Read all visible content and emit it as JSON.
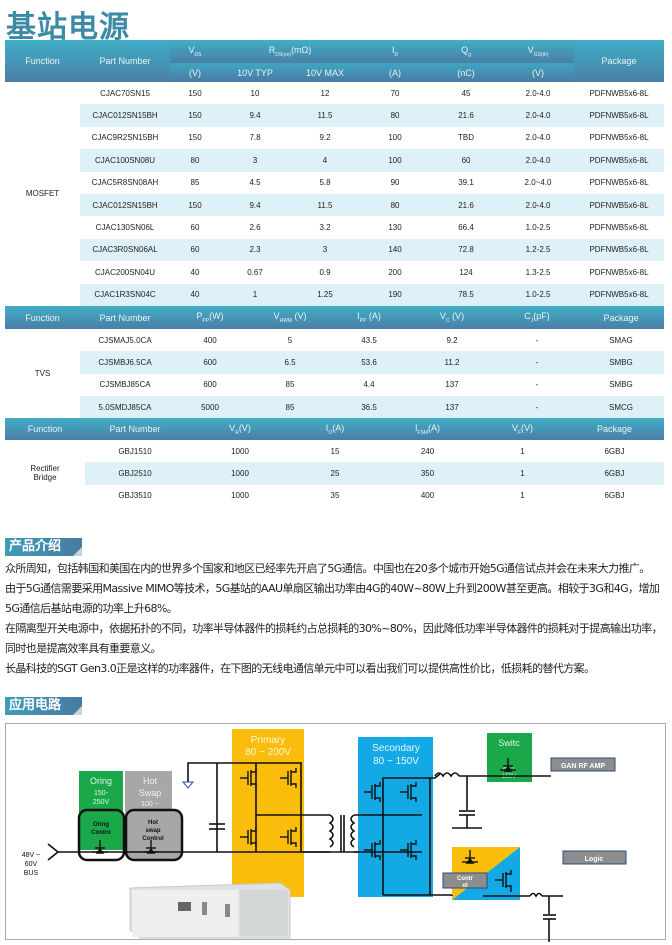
{
  "title": "基站电源",
  "mosfet": {
    "headers": {
      "function": "Function",
      "part": "Part  Number",
      "vds": "V",
      "vds_sub": "DS",
      "rds": "R",
      "rds_sub": "DS(on)",
      "rds_unit": "(mΩ)",
      "id": "I",
      "id_sub": "D",
      "qg": "Q",
      "qg_sub": "g",
      "vgs": "V",
      "vgs_sub": "GS(th)",
      "package": "Package",
      "units": {
        "vds": "(V)",
        "typ": "10V  TYP",
        "max": "10V  MAX",
        "id": "(A)",
        "qg": "(nC)",
        "vgs": "(V)"
      }
    },
    "function": "MOSFET",
    "rows": [
      [
        "CJAC70SN15",
        "150",
        "10",
        "12",
        "70",
        "45",
        "2.0-4.0",
        "PDFNWB5x6-8L"
      ],
      [
        "CJAC012SN15BH",
        "150",
        "9.4",
        "11.5",
        "80",
        "21.6",
        "2.0-4.0",
        "PDFNWB5x6-8L"
      ],
      [
        "CJAC9R2SN15BH",
        "150",
        "7.8",
        "9.2",
        "100",
        "TBD",
        "2.0-4.0",
        "PDFNWB5x6-8L"
      ],
      [
        "CJAC100SN08U",
        "80",
        "3",
        "4",
        "100",
        "60",
        "2.0-4.0",
        "PDFNWB5x6-8L"
      ],
      [
        "CJAC5R8SN08AH",
        "85",
        "4.5",
        "5.8",
        "90",
        "39.1",
        "2.0~4.0",
        "PDFNWB5x6-8L"
      ],
      [
        "CJAC012SN15BH",
        "150",
        "9.4",
        "11.5",
        "80",
        "21.6",
        "2.0-4.0",
        "PDFNWB5x6-8L"
      ],
      [
        "CJAC130SN06L",
        "60",
        "2.6",
        "3.2",
        "130",
        "66.4",
        "1.0-2.5",
        "PDFNWB5x6-8L"
      ],
      [
        "CJAC3R0SN06AL",
        "60",
        "2.3",
        "3",
        "140",
        "72.8",
        "1.2-2.5",
        "PDFNWB5x6-8L"
      ],
      [
        "CJAC200SN04U",
        "40",
        "0.67",
        "0.9",
        "200",
        "124",
        "1.3-2.5",
        "PDFNWB5x6-8L"
      ],
      [
        "CJAC1R3SN04C",
        "40",
        "1",
        "1.25",
        "190",
        "78.5",
        "1.0-2.5",
        "PDFNWB5x6-8L"
      ]
    ]
  },
  "tvs": {
    "headers": {
      "function": "Function",
      "part": "Part  Number",
      "ppp": "P",
      "ppp_sub": "PP",
      "ppp_unit": "(W)",
      "vrwm": "V",
      "vrwm_sub": "RWM",
      "vrwm_unit": "  (V)",
      "ipp": "I",
      "ipp_sub": "PP",
      "ipp_unit": " (A)",
      "vc": "V",
      "vc_sub": "C",
      "vc_unit": "  (V)",
      "cj": "C",
      "cj_sub": "J",
      "cj_unit": "(pF)",
      "package": "Package"
    },
    "function": "TVS",
    "rows": [
      [
        "CJSMAJ5.0CA",
        "400",
        "5",
        "43.5",
        "9.2",
        "-",
        "SMAG"
      ],
      [
        "CJSMBJ6.5CA",
        "600",
        "6.5",
        "53.6",
        "11.2",
        "-",
        "SMBG"
      ],
      [
        "CJSMBJ85CA",
        "600",
        "85",
        "4.4",
        "137",
        "-",
        "SMBG"
      ],
      [
        "5.0SMDJ85CA",
        "5000",
        "85",
        "36.5",
        "137",
        "-",
        "SMCG"
      ]
    ]
  },
  "rectifier": {
    "headers": {
      "function": "Function",
      "part": "Part  Number",
      "vr": "V",
      "vr_sub": "R",
      "vr_unit": "(V)",
      "io": "I",
      "io_sub": "O",
      "io_unit": "(A)",
      "ifsm": "I",
      "ifsm_sub": "FSM",
      "ifsm_unit": "(A)",
      "vf": "V",
      "vf_sub": "F",
      "vf_unit": "(V)",
      "package": "Package"
    },
    "function_l1": "Rectifier",
    "function_l2": "Bridge",
    "rows": [
      [
        "GBJ1510",
        "1000",
        "15",
        "240",
        "1",
        "6GBJ"
      ],
      [
        "GBJ2510",
        "1000",
        "25",
        "350",
        "1",
        "6GBJ"
      ],
      [
        "GBJ3510",
        "1000",
        "35",
        "400",
        "1",
        "6GBJ"
      ]
    ]
  },
  "intro": {
    "heading": "产品介绍",
    "paragraphs": [
      "众所周知，包括韩国和美国在内的世界多个国家和地区已经率先开启了5G通信。中国也在20多个城市开始5G通信试点并会在未来大力推广。",
      "由于5G通信需要采用Massive MIMO等技术，5G基站的AAU单扇区输出功率由4G的40W~80W上升到200W甚至更高。相较于3G和4G，增加5G通信后基站电源的功率上升68%。",
      "在隔离型开关电源中，依据拓扑的不同，功率半导体器件的损耗约占总损耗的30%~80%，因此降低功率半导体器件的损耗对于提高输出功率，同时也是提高效率具有重要意义。",
      "长晶科技的SGT Gen3.0正是这样的功率器件，在下图的无线电通信单元中可以看出我们可以提供高性价比，低损耗的替代方案。"
    ]
  },
  "circuit": {
    "heading": "应用电路",
    "oring": {
      "l1": "Oring",
      "l2": "150-",
      "l3": "250V",
      "ctl1": "Oring",
      "ctl2": "Contro"
    },
    "hotswap": {
      "l1": "Hot",
      "l2": "Swap",
      "l3": "100 ~",
      "ctl1": "Hot",
      "ctl2": "swap",
      "ctl3": "Control"
    },
    "primary": {
      "l1": "Primary",
      "l2": "80 ~ 200V"
    },
    "secondary": {
      "l1": "Secondary",
      "l2": "80 ~ 150V"
    },
    "switch": {
      "l1": "Switc",
      "l2": "80 ~",
      "l3": "150V"
    },
    "gan": "GAN RF AMP",
    "logic": "Logic",
    "control": {
      "l1": "Contr",
      "l2": "ol"
    },
    "bus": {
      "l1": "48V ~",
      "l2": "60V",
      "l3": "BUS"
    },
    "colors": {
      "green": "#1aa84b",
      "grey": "#a7a7a7",
      "yellow": "#fbbd0c",
      "blue": "#13a9e4"
    }
  }
}
